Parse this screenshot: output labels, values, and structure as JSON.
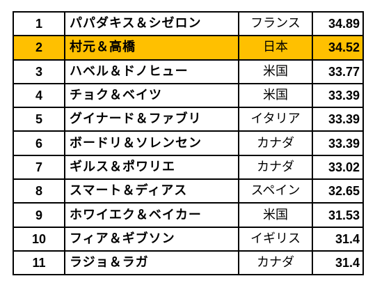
{
  "highlight_color": "#ffc000",
  "highlighted_rank": "2",
  "rows": [
    {
      "rank": "1",
      "name": "パパダキス＆シゼロン",
      "country": "フランス",
      "score": "34.89"
    },
    {
      "rank": "2",
      "name": "村元＆高橋",
      "country": "日本",
      "score": "34.52"
    },
    {
      "rank": "3",
      "name": "ハベル＆ドノヒュー",
      "country": "米国",
      "score": "33.77"
    },
    {
      "rank": "4",
      "name": "チョク＆ベイツ",
      "country": "米国",
      "score": "33.39"
    },
    {
      "rank": "5",
      "name": "グイナード＆ファブリ",
      "country": "イタリア",
      "score": "33.39"
    },
    {
      "rank": "6",
      "name": "ボードリ＆ソレンセン",
      "country": "カナダ",
      "score": "33.39"
    },
    {
      "rank": "7",
      "name": "ギルス＆ポワリエ",
      "country": "カナダ",
      "score": "33.02"
    },
    {
      "rank": "8",
      "name": "スマート＆ディアス",
      "country": "スペイン",
      "score": "32.65"
    },
    {
      "rank": "9",
      "name": "ホワイエク＆ベイカー",
      "country": "米国",
      "score": "31.53"
    },
    {
      "rank": "10",
      "name": "フィア＆ギブソン",
      "country": "イギリス",
      "score": "31.4"
    },
    {
      "rank": "11",
      "name": "ラジョ＆ラガ",
      "country": "カナダ",
      "score": "31.4"
    }
  ]
}
